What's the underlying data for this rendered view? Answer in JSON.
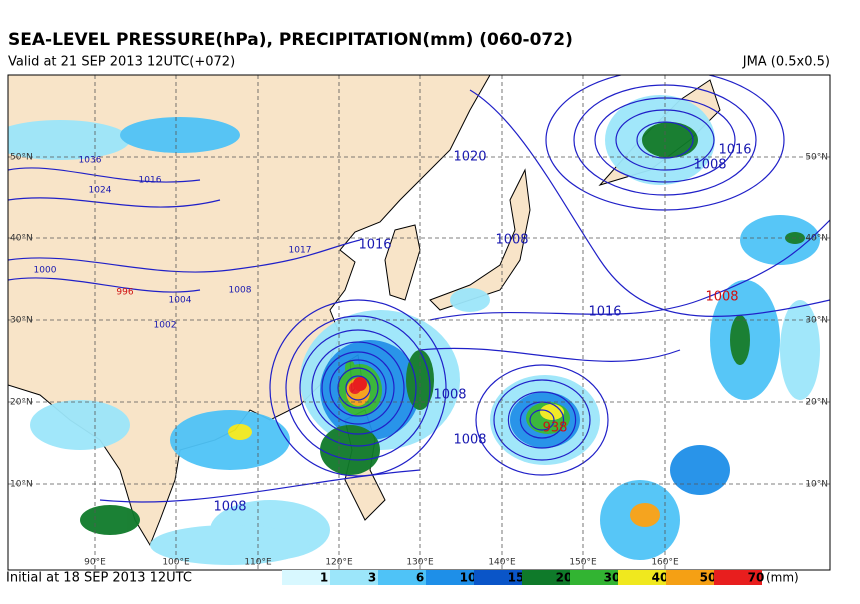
{
  "header": {
    "title": "SEA-LEVEL PRESSURE(hPa), PRECIPITATION(mm) (060-072)",
    "valid": "Valid at 21 SEP 2013 12UTC(+072)",
    "model": "JMA (0.5x0.5)"
  },
  "map": {
    "lat_labels": [
      "50°N",
      "40°N",
      "30°N",
      "20°N",
      "10°N"
    ],
    "lon_labels": [
      "90°E",
      "100°E",
      "110°E",
      "120°E",
      "130°E",
      "140°E",
      "150°E",
      "160°E"
    ],
    "isobar_labels": [
      "1036",
      "1024",
      "1016",
      "1004",
      "1000",
      "1008",
      "1002",
      "996",
      "1020",
      "1017",
      "1016",
      "1008",
      "1016",
      "1008",
      "1016",
      "1008",
      "1008",
      "1008",
      "938",
      "1008"
    ]
  },
  "footer": {
    "initial": "Initial at 18 SEP 2013 12UTC",
    "unit": "(mm)"
  },
  "legend": [
    {
      "label": "1",
      "color": "#d8f8ff"
    },
    {
      "label": "3",
      "color": "#9ce6fa"
    },
    {
      "label": "6",
      "color": "#4fc3f7"
    },
    {
      "label": "10",
      "color": "#1e8fe8"
    },
    {
      "label": "15",
      "color": "#0a55c8"
    },
    {
      "label": "20",
      "color": "#0f7a2a"
    },
    {
      "label": "30",
      "color": "#32b432"
    },
    {
      "label": "40",
      "color": "#f0e81e"
    },
    {
      "label": "50",
      "color": "#f5a014"
    },
    {
      "label": "70",
      "color": "#e81e1e"
    }
  ]
}
